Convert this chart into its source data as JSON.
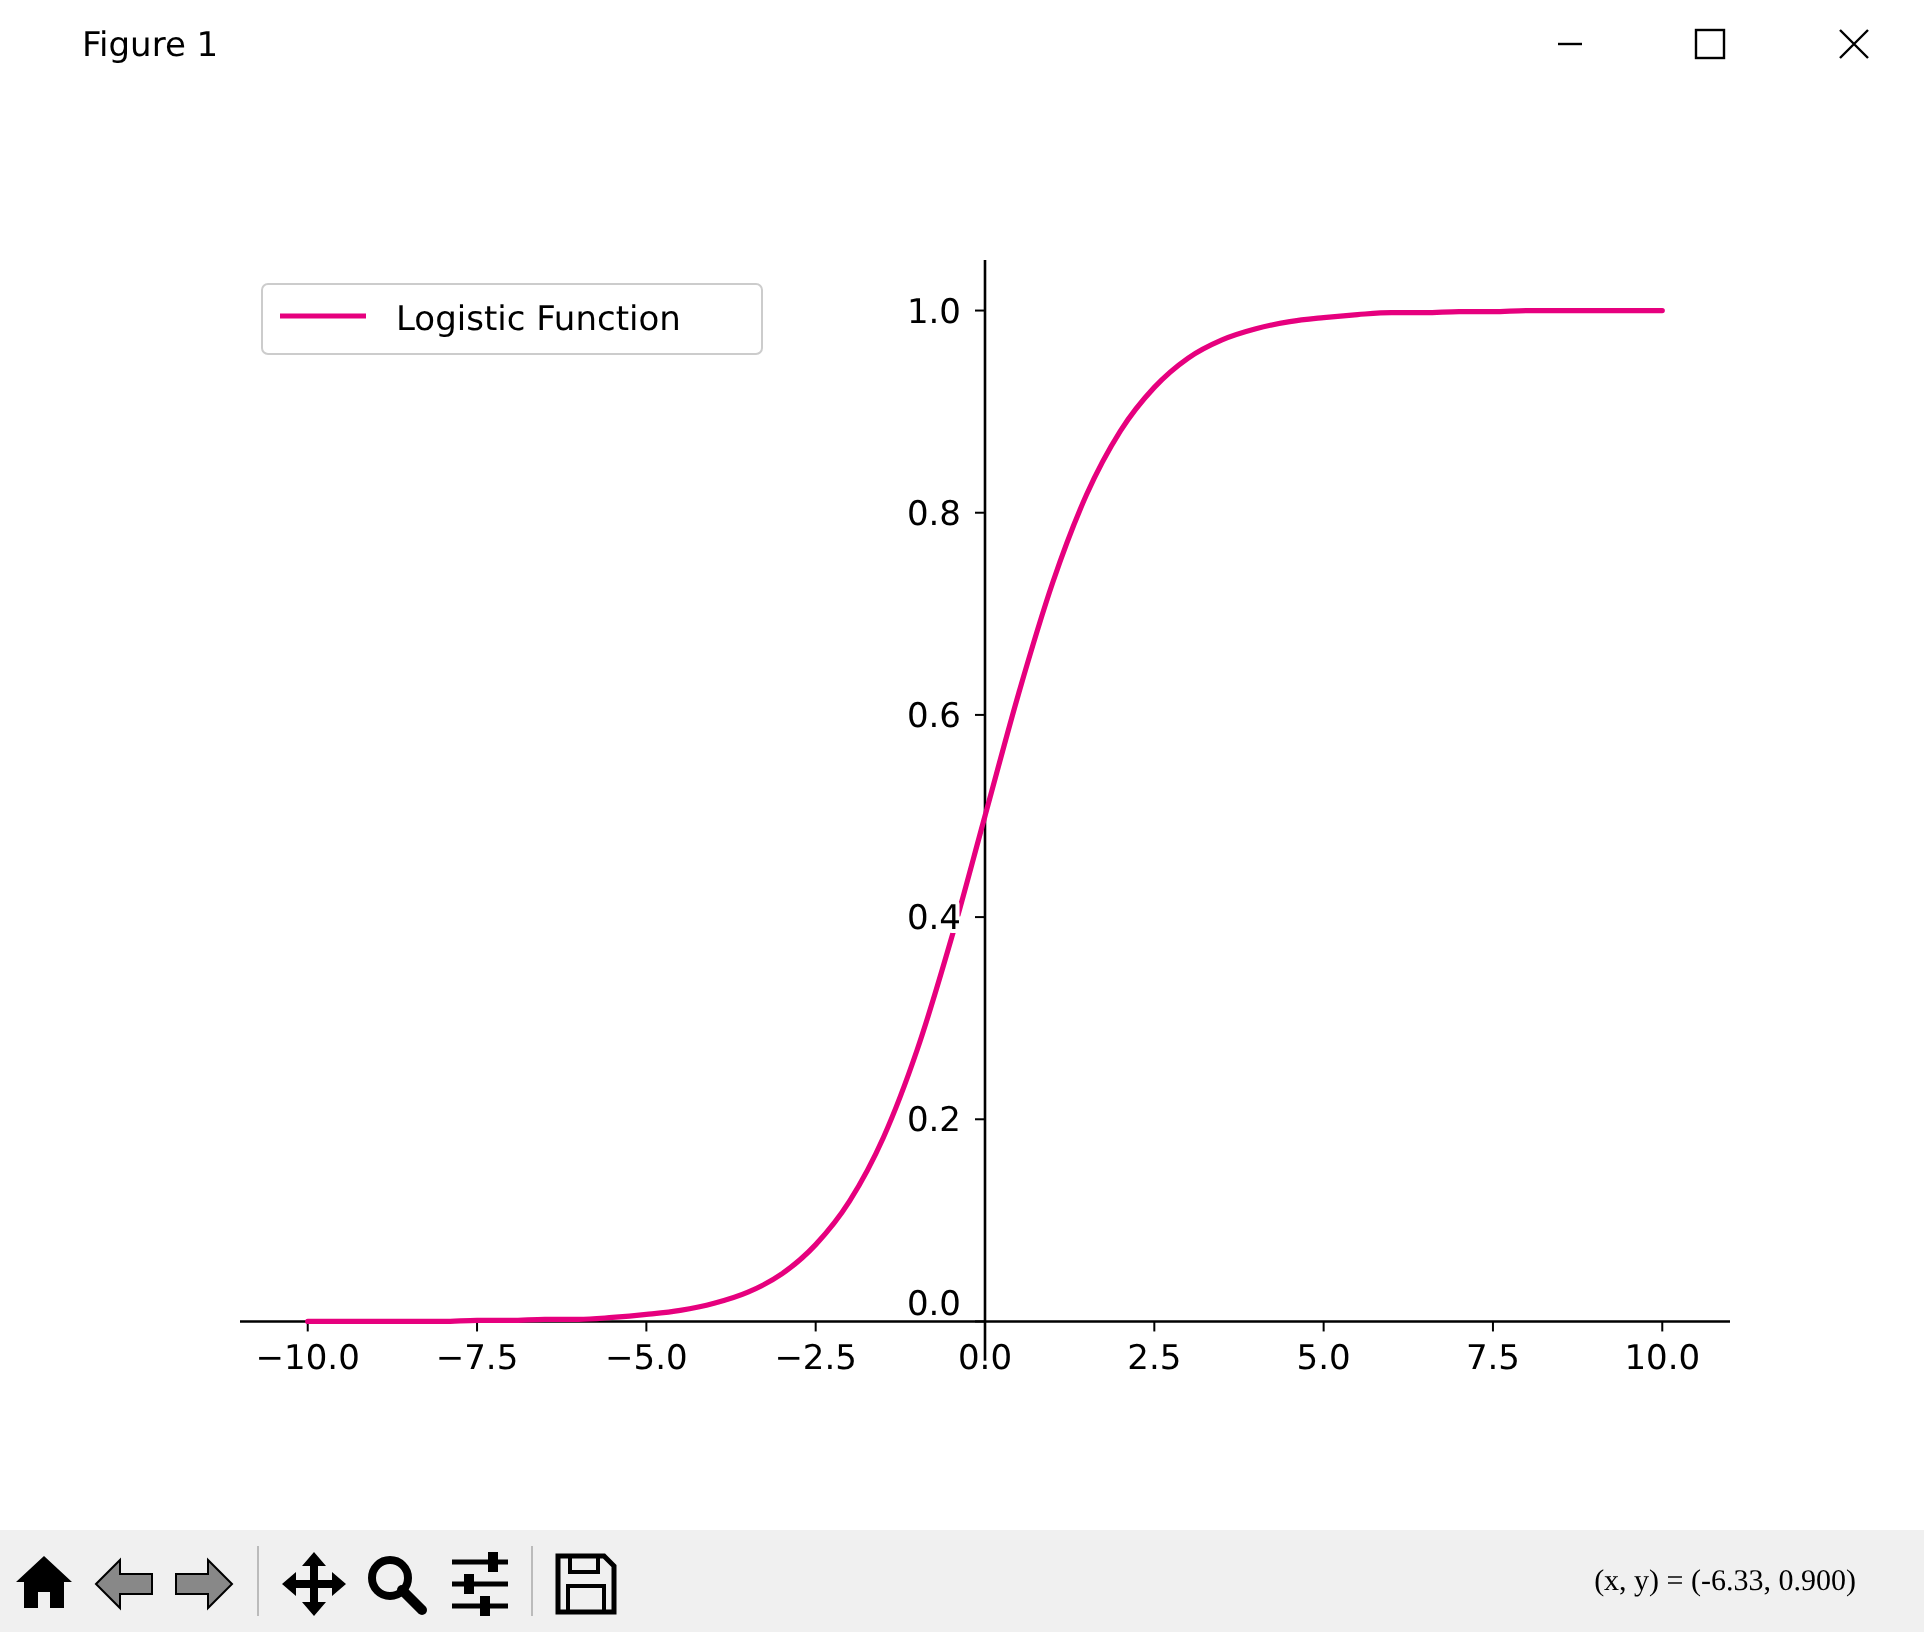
{
  "chart_data": {
    "type": "line",
    "annotations": [
      "Figure 1",
      "(x, y) = (-6.33, 0.900)"
    ],
    "x": [
      -10,
      -9.5,
      -9,
      -8.5,
      -8,
      -7.5,
      -7,
      -6.5,
      -6,
      -5.5,
      -5,
      -4.5,
      -4,
      -3.5,
      -3,
      -2.5,
      -2,
      -1.5,
      -1,
      -0.5,
      0,
      0.5,
      1,
      1.5,
      2,
      2.5,
      3,
      3.5,
      4,
      4.5,
      5,
      5.5,
      6,
      6.5,
      7,
      7.5,
      8,
      8.5,
      9,
      9.5,
      10
    ],
    "series": [
      {
        "name": "Logistic Function",
        "color": "#e6007e",
        "values": [
          0,
          0,
          0,
          0,
          0,
          0.001,
          0.001,
          0.002,
          0.002,
          0.004,
          0.007,
          0.011,
          0.018,
          0.029,
          0.047,
          0.076,
          0.119,
          0.182,
          0.269,
          0.378,
          0.5,
          0.622,
          0.731,
          0.818,
          0.881,
          0.924,
          0.953,
          0.971,
          0.982,
          0.989,
          0.993,
          0.996,
          0.998,
          0.998,
          0.999,
          0.999,
          1,
          1,
          1,
          1,
          1
        ]
      }
    ],
    "xlim": [
      -11,
      11
    ],
    "xticks": [
      {
        "value": -10,
        "label": "−10.0"
      },
      {
        "value": -7.5,
        "label": "−7.5"
      },
      {
        "value": -5,
        "label": "−5.0"
      },
      {
        "value": -2.5,
        "label": "−2.5"
      },
      {
        "value": 0,
        "label": "0.0"
      },
      {
        "value": 2.5,
        "label": "2.5"
      },
      {
        "value": 5,
        "label": "5.0"
      },
      {
        "value": 7.5,
        "label": "7.5"
      },
      {
        "value": 10,
        "label": "10.0"
      }
    ],
    "ylim": [
      -0.05,
      1.05
    ],
    "yticks": [
      {
        "value": 0,
        "label": "0.0"
      },
      {
        "value": 0.2,
        "label": "0.2"
      },
      {
        "value": 0.4,
        "label": "0.4"
      },
      {
        "value": 0.6,
        "label": "0.6"
      },
      {
        "value": 0.8,
        "label": "0.8"
      },
      {
        "value": 1,
        "label": "1.0"
      }
    ],
    "grid": false,
    "legend": "top left",
    "marker": "none",
    "line_style": "solid"
  }
}
